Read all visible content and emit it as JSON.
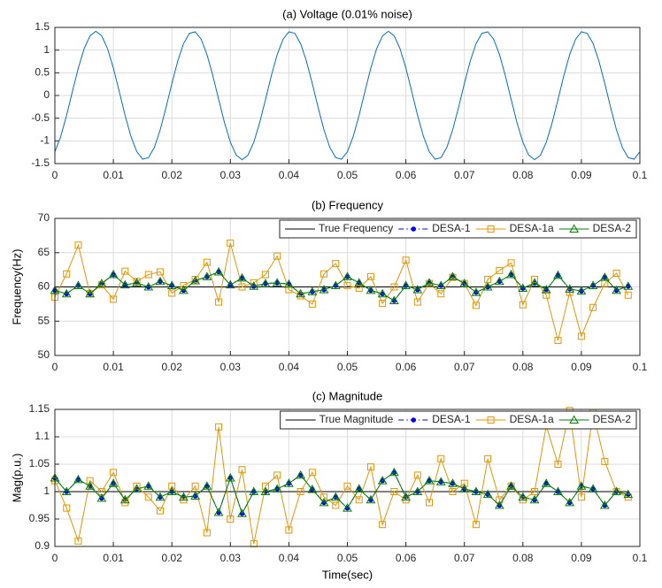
{
  "chart_data": [
    {
      "type": "line",
      "title": "(a) Voltage (0.01% noise)",
      "x": [
        0,
        0.001,
        0.002,
        0.003,
        0.004,
        0.005,
        0.006,
        0.007,
        0.008,
        0.009,
        0.01,
        0.011,
        0.012,
        0.013,
        0.014,
        0.015,
        0.016,
        0.017,
        0.018,
        0.019,
        0.02,
        0.021,
        0.022,
        0.023,
        0.024,
        0.025,
        0.026,
        0.027,
        0.028,
        0.029,
        0.03,
        0.031,
        0.032,
        0.033,
        0.034,
        0.035,
        0.036,
        0.037,
        0.038,
        0.039,
        0.04,
        0.041,
        0.042,
        0.043,
        0.044,
        0.045,
        0.046,
        0.047,
        0.048,
        0.049,
        0.05,
        0.051,
        0.052,
        0.053,
        0.054,
        0.055,
        0.056,
        0.057,
        0.058,
        0.059,
        0.06,
        0.061,
        0.062,
        0.063,
        0.064,
        0.065,
        0.066,
        0.067,
        0.068,
        0.069,
        0.07,
        0.071,
        0.072,
        0.073,
        0.074,
        0.075,
        0.076,
        0.077,
        0.078,
        0.079,
        0.08,
        0.081,
        0.082,
        0.083,
        0.084,
        0.085,
        0.086,
        0.087,
        0.088,
        0.089,
        0.09,
        0.091,
        0.092,
        0.093,
        0.094,
        0.095,
        0.096,
        0.097,
        0.098,
        0.099,
        0.1
      ],
      "series": [
        {
          "name": "Voltage",
          "color": "#0072bd",
          "marker": "none",
          "values": [
            -1.24,
            -0.902,
            -0.438,
            0.088,
            0.601,
            1.03,
            1.314,
            1.414,
            1.315,
            1.032,
            0.603,
            0.09,
            -0.436,
            -0.9,
            -1.238,
            -1.403,
            -1.37,
            -1.145,
            -0.758,
            -0.266,
            0.264,
            0.757,
            1.144,
            1.369,
            1.403,
            1.24,
            0.902,
            0.438,
            -0.088,
            -0.601,
            -1.03,
            -1.314,
            -1.414,
            -1.315,
            -1.032,
            -0.603,
            -0.09,
            0.436,
            0.9,
            1.238,
            1.403,
            1.37,
            1.145,
            0.758,
            0.266,
            -0.264,
            -0.757,
            -1.144,
            -1.369,
            -1.403,
            -1.24,
            -0.902,
            -0.438,
            0.088,
            0.601,
            1.03,
            1.314,
            1.414,
            1.315,
            1.032,
            0.603,
            0.09,
            -0.436,
            -0.9,
            -1.238,
            -1.403,
            -1.37,
            -1.145,
            -0.758,
            -0.266,
            0.264,
            0.757,
            1.144,
            1.369,
            1.403,
            1.24,
            0.902,
            0.438,
            -0.088,
            -0.601,
            -1.03,
            -1.314,
            -1.414,
            -1.315,
            -1.032,
            -0.603,
            -0.09,
            0.436,
            0.9,
            1.238,
            1.403,
            1.37,
            1.145,
            0.758,
            0.266,
            -0.264,
            -0.757,
            -1.144,
            -1.369,
            -1.403,
            -1.24
          ]
        }
      ],
      "xlim": [
        0,
        0.1
      ],
      "xticks": [
        0,
        0.01,
        0.02,
        0.03,
        0.04,
        0.05,
        0.06,
        0.07,
        0.08,
        0.09,
        0.1
      ],
      "ylim": [
        -1.5,
        1.5
      ],
      "yticks": [
        -1.5,
        -1,
        -0.5,
        0,
        0.5,
        1,
        1.5
      ],
      "grid": true
    },
    {
      "type": "line",
      "title": "(b) Frequency",
      "y_label": "Frequency(Hz)",
      "legend": "north-east",
      "x": [
        0,
        0.002,
        0.004,
        0.006,
        0.008,
        0.01,
        0.012,
        0.014,
        0.016,
        0.018,
        0.02,
        0.022,
        0.024,
        0.026,
        0.028,
        0.03,
        0.032,
        0.034,
        0.036,
        0.038,
        0.04,
        0.042,
        0.044,
        0.046,
        0.048,
        0.05,
        0.052,
        0.054,
        0.056,
        0.058,
        0.06,
        0.062,
        0.064,
        0.066,
        0.068,
        0.07,
        0.072,
        0.074,
        0.076,
        0.078,
        0.08,
        0.082,
        0.084,
        0.086,
        0.088,
        0.09,
        0.092,
        0.094,
        0.096,
        0.098
      ],
      "series": [
        {
          "name": "True Frequency",
          "color": "#000000",
          "marker": "none",
          "values": [
            60,
            60,
            60,
            60,
            60,
            60,
            60,
            60,
            60,
            60,
            60,
            60,
            60,
            60,
            60,
            60,
            60,
            60,
            60,
            60,
            60,
            60,
            60,
            60,
            60,
            60,
            60,
            60,
            60,
            60,
            60,
            60,
            60,
            60,
            60,
            60,
            60,
            60,
            60,
            60,
            60,
            60,
            60,
            60,
            60,
            60,
            60,
            60,
            60,
            60
          ]
        },
        {
          "name": "DESA-1",
          "color": "#0000ff",
          "marker": "dot",
          "dash": "dashdot",
          "values": [
            59.5,
            59.0,
            60.2,
            59.0,
            60.5,
            61.8,
            60.3,
            60.6,
            60.0,
            60.8,
            60.2,
            59.5,
            60.9,
            61.5,
            62.2,
            60.3,
            61.3,
            60.1,
            60.5,
            60.6,
            60.4,
            59.0,
            59.3,
            59.6,
            60.2,
            61.5,
            60.6,
            59.5,
            59.0,
            58.0,
            60.2,
            59.6,
            60.6,
            60.2,
            61.5,
            60.5,
            59.2,
            60.0,
            60.8,
            61.8,
            59.8,
            60.6,
            59.6,
            61.7,
            59.7,
            59.4,
            60.2,
            61.4,
            59.5,
            60.1
          ]
        },
        {
          "name": "DESA-1a",
          "color": "#e69500",
          "marker": "square",
          "values": [
            58.5,
            61.9,
            66.1,
            59.0,
            60.3,
            58.2,
            62.3,
            60.8,
            61.8,
            62.2,
            59.1,
            60.2,
            61.1,
            63.6,
            57.8,
            66.4,
            60.0,
            60.6,
            61.8,
            64.5,
            59.6,
            58.7,
            57.5,
            61.9,
            63.4,
            60.2,
            59.8,
            61.5,
            57.6,
            60.0,
            63.9,
            57.8,
            60.5,
            59.0,
            61.4,
            60.5,
            57.3,
            61.1,
            62.4,
            63.5,
            57.4,
            61.1,
            58.8,
            52.2,
            59.2,
            52.8,
            57.0,
            60.5,
            62.0,
            58.8
          ]
        },
        {
          "name": "DESA-2",
          "color": "#008000",
          "marker": "triangle",
          "values": [
            59.5,
            59.0,
            60.2,
            59.0,
            60.5,
            61.8,
            60.3,
            60.6,
            60.0,
            60.8,
            60.2,
            59.5,
            60.9,
            61.5,
            62.2,
            60.3,
            61.3,
            60.1,
            60.5,
            60.6,
            60.4,
            59.0,
            59.3,
            59.6,
            60.2,
            61.5,
            60.6,
            59.5,
            59.0,
            58.0,
            60.2,
            59.6,
            60.6,
            60.2,
            61.5,
            60.5,
            59.2,
            60.0,
            60.8,
            61.8,
            59.8,
            60.6,
            59.6,
            61.7,
            59.7,
            59.4,
            60.2,
            61.4,
            59.5,
            60.1
          ]
        }
      ],
      "xlim": [
        0,
        0.1
      ],
      "xticks": [
        0,
        0.01,
        0.02,
        0.03,
        0.04,
        0.05,
        0.06,
        0.07,
        0.08,
        0.09,
        0.1
      ],
      "ylim": [
        50,
        70
      ],
      "yticks": [
        50,
        55,
        60,
        65,
        70
      ],
      "grid": true
    },
    {
      "type": "line",
      "title": "(c) Magnitude",
      "x_label": "Time(sec)",
      "y_label": "Mag(p.u.)",
      "legend": "north-east",
      "x": [
        0,
        0.002,
        0.004,
        0.006,
        0.008,
        0.01,
        0.012,
        0.014,
        0.016,
        0.018,
        0.02,
        0.022,
        0.024,
        0.026,
        0.028,
        0.03,
        0.032,
        0.034,
        0.036,
        0.038,
        0.04,
        0.042,
        0.044,
        0.046,
        0.048,
        0.05,
        0.052,
        0.054,
        0.056,
        0.058,
        0.06,
        0.062,
        0.064,
        0.066,
        0.068,
        0.07,
        0.072,
        0.074,
        0.076,
        0.078,
        0.08,
        0.082,
        0.084,
        0.086,
        0.088,
        0.09,
        0.092,
        0.094,
        0.096,
        0.098
      ],
      "series": [
        {
          "name": "True Magnitude",
          "color": "#000000",
          "marker": "none",
          "values": [
            1,
            1,
            1,
            1,
            1,
            1,
            1,
            1,
            1,
            1,
            1,
            1,
            1,
            1,
            1,
            1,
            1,
            1,
            1,
            1,
            1,
            1,
            1,
            1,
            1,
            1,
            1,
            1,
            1,
            1,
            1,
            1,
            1,
            1,
            1,
            1,
            1,
            1,
            1,
            1,
            1,
            1,
            1,
            1,
            1,
            1,
            1,
            1,
            1,
            1
          ]
        },
        {
          "name": "DESA-1",
          "color": "#0000ff",
          "marker": "dot",
          "dash": "dashdot",
          "values": [
            1.025,
            1.0,
            1.022,
            1.01,
            0.988,
            1.015,
            0.985,
            1.005,
            1.01,
            0.99,
            1.0,
            0.99,
            0.992,
            1.01,
            0.962,
            1.025,
            0.96,
            1.0,
            1.0,
            1.005,
            1.015,
            1.03,
            1.004,
            0.98,
            0.99,
            0.97,
            1.005,
            0.985,
            1.02,
            1.035,
            0.99,
            1.0,
            1.02,
            1.018,
            1.015,
            1.005,
            1.0,
            0.995,
            0.975,
            1.01,
            0.99,
            0.985,
            1.015,
            1.0,
            0.98,
            1.01,
            1.005,
            0.975,
            1.0,
            0.995
          ]
        },
        {
          "name": "DESA-1a",
          "color": "#e69500",
          "marker": "square",
          "values": [
            1.02,
            0.97,
            0.91,
            1.02,
            1.0,
            1.035,
            0.98,
            1.01,
            0.99,
            0.965,
            1.01,
            0.985,
            1.01,
            0.925,
            1.118,
            0.95,
            1.04,
            0.905,
            1.01,
            1.03,
            0.93,
            1.0,
            1.035,
            0.99,
            0.975,
            1.01,
            0.985,
            1.045,
            0.94,
            1.0,
            0.985,
            1.03,
            0.98,
            1.06,
            1.0,
            1.015,
            0.94,
            1.06,
            0.985,
            1.01,
            0.985,
            1.0,
            1.12,
            1.05,
            1.148,
            0.99,
            1.144,
            1.055,
            1.0,
            0.99
          ]
        },
        {
          "name": "DESA-2",
          "color": "#008000",
          "marker": "triangle",
          "values": [
            1.025,
            1.0,
            1.022,
            1.01,
            0.988,
            1.015,
            0.985,
            1.005,
            1.01,
            0.99,
            1.0,
            0.99,
            0.992,
            1.01,
            0.962,
            1.025,
            0.96,
            1.0,
            1.0,
            1.005,
            1.015,
            1.03,
            1.004,
            0.98,
            0.99,
            0.97,
            1.005,
            0.985,
            1.02,
            1.035,
            0.99,
            1.0,
            1.02,
            1.018,
            1.015,
            1.005,
            1.0,
            0.995,
            0.975,
            1.01,
            0.99,
            0.985,
            1.015,
            1.0,
            0.98,
            1.01,
            1.005,
            0.975,
            1.0,
            0.995
          ]
        }
      ],
      "xlim": [
        0,
        0.1
      ],
      "xticks": [
        0,
        0.01,
        0.02,
        0.03,
        0.04,
        0.05,
        0.06,
        0.07,
        0.08,
        0.09,
        0.1
      ],
      "ylim": [
        0.9,
        1.15
      ],
      "yticks": [
        0.9,
        0.95,
        1,
        1.05,
        1.1,
        1.15
      ],
      "grid": true
    }
  ]
}
